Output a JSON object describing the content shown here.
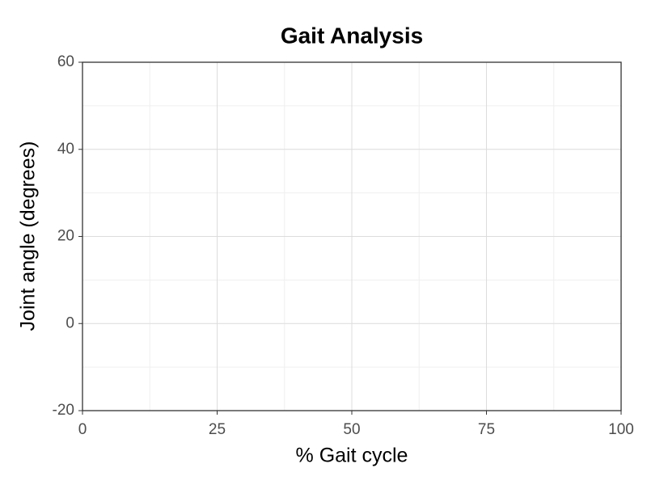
{
  "chart_data": {
    "type": "line",
    "title": "Gait Analysis",
    "x_label": "% Gait cycle",
    "y_label": "Joint angle (degrees)",
    "series": [],
    "xlim": [
      0,
      100
    ],
    "ylim": [
      -20,
      60
    ],
    "xticks": [
      0,
      25,
      50,
      75,
      100
    ],
    "yticks": [
      -20,
      0,
      20,
      40,
      60
    ],
    "grid": true
  }
}
